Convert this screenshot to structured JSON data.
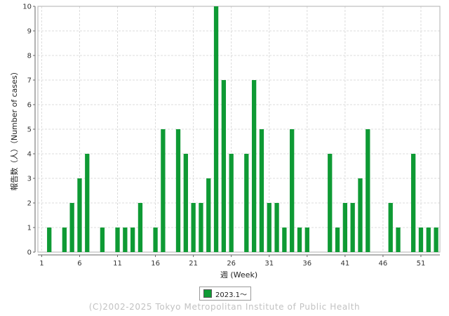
{
  "chart_data": {
    "type": "bar",
    "xlabel": "週 (Week)",
    "ylabel": "報告数（人）（Number of cases）",
    "ylim": [
      0,
      10
    ],
    "yticks": [
      0,
      1,
      2,
      3,
      4,
      5,
      6,
      7,
      8,
      9,
      10
    ],
    "xticks": [
      1,
      6,
      11,
      16,
      21,
      26,
      31,
      36,
      41,
      46,
      51
    ],
    "x": [
      1,
      2,
      3,
      4,
      5,
      6,
      7,
      8,
      9,
      10,
      11,
      12,
      13,
      14,
      15,
      16,
      17,
      18,
      19,
      20,
      21,
      22,
      23,
      24,
      25,
      26,
      27,
      28,
      29,
      30,
      31,
      32,
      33,
      34,
      35,
      36,
      37,
      38,
      39,
      40,
      41,
      42,
      43,
      44,
      45,
      46,
      47,
      48,
      49,
      50,
      51,
      52,
      53
    ],
    "series": [
      {
        "name": "2023.1～",
        "color": "#0e9a34",
        "values": [
          0,
          1,
          0,
          1,
          2,
          3,
          4,
          0,
          1,
          0,
          1,
          1,
          1,
          2,
          0,
          1,
          5,
          0,
          5,
          4,
          2,
          2,
          3,
          10,
          7,
          4,
          0,
          4,
          7,
          5,
          2,
          2,
          1,
          5,
          1,
          1,
          0,
          0,
          4,
          1,
          2,
          2,
          3,
          5,
          0,
          0,
          2,
          1,
          0,
          4,
          1,
          1,
          1
        ]
      }
    ],
    "grid": true,
    "legend_position": "bottom-center"
  },
  "footer": {
    "copyright": "(C)2002-2025 Tokyo Metropolitan Institute of Public Health"
  }
}
